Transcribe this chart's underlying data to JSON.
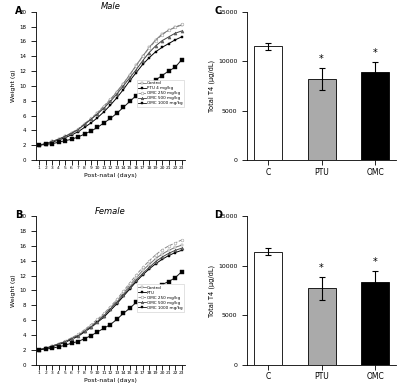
{
  "days": [
    1,
    2,
    3,
    4,
    5,
    6,
    7,
    8,
    9,
    10,
    11,
    12,
    13,
    14,
    15,
    16,
    17,
    18,
    19,
    20,
    21,
    22,
    23
  ],
  "male_control": [
    2.0,
    2.2,
    2.5,
    2.8,
    3.2,
    3.6,
    4.1,
    4.8,
    5.5,
    6.3,
    7.2,
    8.1,
    9.2,
    10.3,
    11.5,
    12.8,
    14.0,
    15.2,
    16.2,
    17.0,
    17.5,
    17.9,
    18.2
  ],
  "male_ptu": [
    2.0,
    2.2,
    2.4,
    2.7,
    3.0,
    3.4,
    3.8,
    4.4,
    5.0,
    5.7,
    6.5,
    7.4,
    8.4,
    9.5,
    10.7,
    11.8,
    12.9,
    13.8,
    14.6,
    15.2,
    15.7,
    16.2,
    16.6
  ],
  "male_omc250": [
    2.0,
    2.2,
    2.5,
    2.8,
    3.2,
    3.7,
    4.2,
    4.9,
    5.6,
    6.4,
    7.3,
    8.2,
    9.2,
    10.3,
    11.5,
    12.7,
    14.0,
    15.1,
    16.1,
    16.9,
    17.5,
    17.9,
    18.3
  ],
  "male_omc500": [
    2.0,
    2.2,
    2.5,
    2.8,
    3.2,
    3.6,
    4.1,
    4.8,
    5.5,
    6.2,
    7.0,
    7.9,
    8.9,
    10.0,
    11.1,
    12.2,
    13.4,
    14.5,
    15.4,
    16.1,
    16.6,
    17.1,
    17.4
  ],
  "male_omc1000": [
    2.0,
    2.1,
    2.2,
    2.4,
    2.6,
    2.8,
    3.1,
    3.5,
    3.9,
    4.4,
    5.0,
    5.6,
    6.3,
    7.1,
    7.9,
    8.7,
    9.5,
    10.2,
    10.8,
    11.4,
    12.0,
    12.5,
    13.5
  ],
  "female_control": [
    2.0,
    2.2,
    2.5,
    2.8,
    3.1,
    3.5,
    3.9,
    4.5,
    5.2,
    5.9,
    6.7,
    7.6,
    8.6,
    9.6,
    10.7,
    11.7,
    12.7,
    13.5,
    14.3,
    14.9,
    15.4,
    15.8,
    16.1
  ],
  "female_ptu": [
    2.0,
    2.2,
    2.4,
    2.7,
    3.0,
    3.4,
    3.8,
    4.4,
    5.0,
    5.7,
    6.4,
    7.3,
    8.2,
    9.2,
    10.2,
    11.2,
    12.1,
    12.9,
    13.6,
    14.2,
    14.7,
    15.1,
    15.4
  ],
  "female_omc250": [
    2.0,
    2.2,
    2.5,
    2.8,
    3.2,
    3.6,
    4.1,
    4.7,
    5.4,
    6.1,
    6.9,
    7.8,
    8.8,
    9.9,
    11.0,
    12.1,
    13.1,
    14.0,
    14.8,
    15.5,
    16.0,
    16.4,
    16.8
  ],
  "female_omc500": [
    2.0,
    2.2,
    2.5,
    2.8,
    3.1,
    3.5,
    3.9,
    4.5,
    5.1,
    5.8,
    6.6,
    7.5,
    8.4,
    9.4,
    10.4,
    11.4,
    12.3,
    13.1,
    13.9,
    14.5,
    15.0,
    15.4,
    15.7
  ],
  "female_omc1000": [
    2.0,
    2.1,
    2.2,
    2.4,
    2.6,
    2.9,
    3.1,
    3.5,
    3.9,
    4.4,
    4.9,
    5.4,
    6.1,
    6.9,
    7.6,
    8.4,
    9.1,
    9.8,
    10.3,
    10.8,
    11.2,
    11.7,
    12.5
  ],
  "bar_C_male_mean": 11500,
  "bar_C_male_err": 350,
  "bar_PTU_male_mean": 8200,
  "bar_PTU_male_err": 1100,
  "bar_OMC_male_mean": 8900,
  "bar_OMC_male_err": 1000,
  "bar_C_female_mean": 11400,
  "bar_C_female_err": 350,
  "bar_PTU_female_mean": 7700,
  "bar_PTU_female_err": 1200,
  "bar_OMC_female_mean": 8400,
  "bar_OMC_female_err": 1100,
  "bar_ylim": [
    0,
    15000
  ],
  "bar_yticks": [
    0,
    5000,
    10000,
    15000
  ],
  "weight_ylim": [
    0,
    20
  ],
  "weight_yticks": [
    0,
    2,
    4,
    6,
    8,
    10,
    12,
    14,
    16,
    18,
    20
  ],
  "xlabel": "Post-natal (days)",
  "ylabel_weight": "Weight (g)",
  "ylabel_t4": "Total T4 (μg/dL)",
  "bar_categories": [
    "C",
    "PTU",
    "OMC"
  ],
  "panel_labels": [
    "A",
    "B",
    "C",
    "D"
  ],
  "legend_labels_male": [
    "Control",
    "PTU 4 mg/kg",
    "OMC 250 mg/kg",
    "OMC 500 mg/kg",
    "OMC 1000 mg/kg"
  ],
  "legend_labels_female": [
    "Control",
    "PTU",
    "OMC 250 mg/kg",
    "OMC 500 mg/kg",
    "OMC 1000 mg/kg"
  ],
  "title_male": "Male",
  "title_female": "Female",
  "bg_color": "#ffffff"
}
